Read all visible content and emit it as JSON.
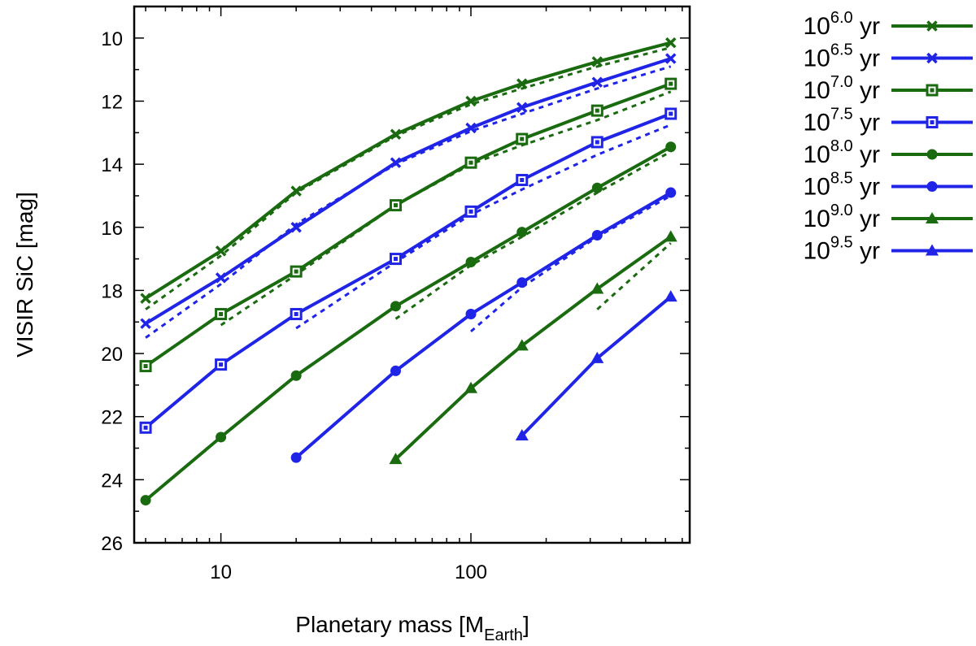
{
  "chart_data": {
    "type": "line",
    "xscale": "log",
    "xlim": [
      4.5,
      750
    ],
    "ylim": [
      26,
      9
    ],
    "y_inverted": true,
    "xlabel_main": "Planetary mass [M",
    "xlabel_sub": "Earth",
    "xlabel_close": "]",
    "ylabel": "VISIR SiC [mag]",
    "xticks": [
      {
        "value": 10,
        "label": "10"
      },
      {
        "value": 100,
        "label": "100"
      }
    ],
    "yticks": [
      {
        "value": 10,
        "label": "10"
      },
      {
        "value": 12,
        "label": "12"
      },
      {
        "value": 14,
        "label": "14"
      },
      {
        "value": 16,
        "label": "16"
      },
      {
        "value": 18,
        "label": "18"
      },
      {
        "value": 20,
        "label": "20"
      },
      {
        "value": 22,
        "label": "22"
      },
      {
        "value": 24,
        "label": "24"
      },
      {
        "value": 26,
        "label": "26"
      }
    ],
    "legend_position": "outside-right",
    "colors": {
      "green": "#1a6b0f",
      "blue": "#1f24e6"
    },
    "series": [
      {
        "base": "10",
        "exp": "6.0",
        "unit": "yr",
        "color": "green",
        "marker": "x",
        "x": [
          5,
          10,
          20,
          50,
          100,
          160,
          320,
          630
        ],
        "y": [
          18.25,
          16.75,
          14.85,
          13.05,
          12.0,
          11.45,
          10.75,
          10.15
        ]
      },
      {
        "base": "10",
        "exp": "6.5",
        "unit": "yr",
        "color": "blue",
        "marker": "x",
        "x": [
          5,
          10,
          20,
          50,
          100,
          160,
          320,
          630
        ],
        "y": [
          19.05,
          17.6,
          16.0,
          13.95,
          12.85,
          12.2,
          11.4,
          10.65
        ]
      },
      {
        "base": "10",
        "exp": "7.0",
        "unit": "yr",
        "color": "green",
        "marker": "square",
        "x": [
          5,
          10,
          20,
          50,
          100,
          160,
          320,
          630
        ],
        "y": [
          20.4,
          18.75,
          17.4,
          15.3,
          13.95,
          13.2,
          12.3,
          11.45
        ]
      },
      {
        "base": "10",
        "exp": "7.5",
        "unit": "yr",
        "color": "blue",
        "marker": "square",
        "x": [
          5,
          10,
          20,
          50,
          100,
          160,
          320,
          630
        ],
        "y": [
          22.35,
          20.35,
          18.75,
          17.0,
          15.5,
          14.5,
          13.3,
          12.4
        ]
      },
      {
        "base": "10",
        "exp": "8.0",
        "unit": "yr",
        "color": "green",
        "marker": "circle",
        "x": [
          5,
          10,
          20,
          50,
          100,
          160,
          320,
          630
        ],
        "y": [
          24.65,
          22.65,
          20.7,
          18.5,
          17.1,
          16.15,
          14.75,
          13.45
        ]
      },
      {
        "base": "10",
        "exp": "8.5",
        "unit": "yr",
        "color": "blue",
        "marker": "circle",
        "x": [
          20,
          50,
          100,
          160,
          320,
          630
        ],
        "y": [
          23.3,
          20.55,
          18.75,
          17.75,
          16.25,
          14.9
        ]
      },
      {
        "base": "10",
        "exp": "9.0",
        "unit": "yr",
        "color": "green",
        "marker": "triangle",
        "x": [
          50,
          100,
          160,
          320,
          630
        ],
        "y": [
          23.35,
          21.1,
          19.75,
          17.95,
          16.3
        ]
      },
      {
        "base": "10",
        "exp": "9.5",
        "unit": "yr",
        "color": "blue",
        "marker": "triangle",
        "x": [
          160,
          320,
          630
        ],
        "y": [
          22.6,
          20.15,
          18.2
        ]
      }
    ],
    "dashed_series": [
      {
        "color": "green",
        "x": [
          5,
          10,
          20,
          50,
          100,
          160,
          320,
          630
        ],
        "y": [
          18.6,
          16.9,
          14.9,
          13.1,
          12.1,
          11.6,
          10.9,
          10.3
        ]
      },
      {
        "color": "blue",
        "x": [
          5,
          10,
          20,
          50,
          100,
          160,
          320,
          630
        ],
        "y": [
          19.5,
          17.8,
          15.9,
          14.0,
          12.95,
          12.4,
          11.6,
          10.9
        ]
      },
      {
        "color": "green",
        "x": [
          10,
          20,
          50,
          100,
          160,
          320,
          630
        ],
        "y": [
          19.1,
          17.5,
          15.3,
          14.0,
          13.4,
          12.6,
          11.7
        ]
      },
      {
        "color": "blue",
        "x": [
          20,
          50,
          100,
          160,
          320,
          630
        ],
        "y": [
          19.2,
          17.1,
          15.6,
          14.8,
          13.7,
          12.75
        ]
      },
      {
        "color": "green",
        "x": [
          50,
          100,
          160,
          320,
          630
        ],
        "y": [
          18.9,
          17.2,
          16.3,
          14.9,
          13.6
        ]
      },
      {
        "color": "blue",
        "x": [
          100,
          160,
          320,
          630
        ],
        "y": [
          19.3,
          17.9,
          16.3,
          15.0
        ]
      },
      {
        "color": "green",
        "x": [
          320,
          630
        ],
        "y": [
          18.6,
          16.5
        ]
      }
    ]
  }
}
